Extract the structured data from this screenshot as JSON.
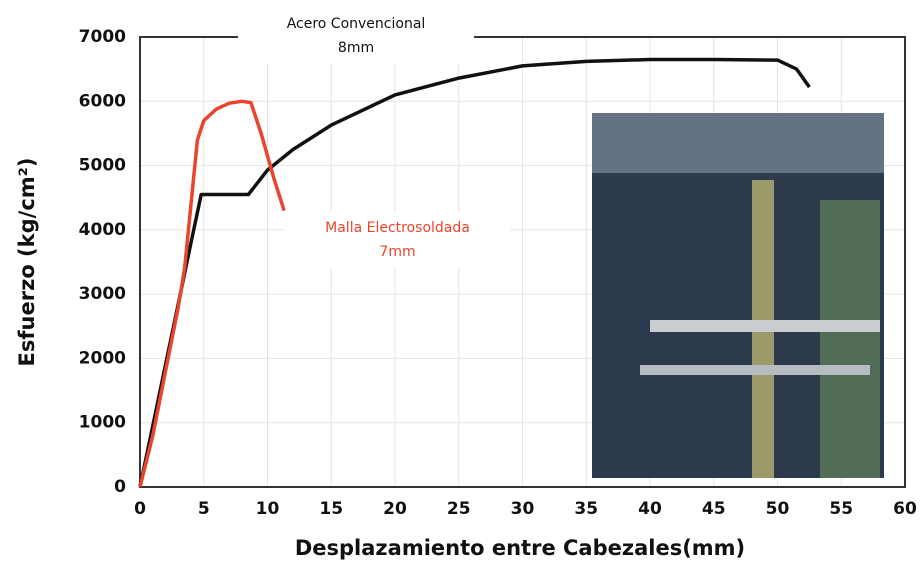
{
  "chart_data": {
    "type": "line",
    "xlabel": "Desplazamiento entre Cabezales(mm)",
    "ylabel": "Esfuerzo (kg/cm²)",
    "xlim": [
      0,
      60
    ],
    "xticks": [
      0,
      5,
      10,
      15,
      20,
      25,
      30,
      35,
      40,
      45,
      50,
      55,
      60
    ],
    "ylim": [
      0,
      7000
    ],
    "yticks": [
      0,
      1000,
      2000,
      3000,
      4000,
      5000,
      6000,
      7000
    ],
    "grid": true,
    "series": [
      {
        "name": "Acero Convencional",
        "annotation": "8mm",
        "color": "#111111",
        "x": [
          0,
          1,
          2,
          3,
          4,
          4.8,
          6,
          7,
          8.5,
          10,
          12,
          15,
          20,
          25,
          30,
          35,
          40,
          45,
          50,
          51.5,
          52.5
        ],
        "values": [
          0,
          950,
          1900,
          2850,
          3800,
          4550,
          4550,
          4550,
          4550,
          4930,
          5250,
          5630,
          6100,
          6360,
          6550,
          6620,
          6650,
          6650,
          6640,
          6500,
          6220
        ]
      },
      {
        "name": "Malla Electrosoldada",
        "annotation": "7mm",
        "color": "#e8452c",
        "x": [
          0,
          1,
          2,
          3,
          3.5,
          4,
          4.5,
          5,
          6,
          7,
          8,
          8.7,
          9.5,
          10.5,
          11.3
        ],
        "values": [
          0,
          800,
          1800,
          2800,
          3400,
          4400,
          5400,
          5700,
          5880,
          5970,
          6000,
          5980,
          5500,
          4800,
          4300
        ]
      }
    ]
  }
}
